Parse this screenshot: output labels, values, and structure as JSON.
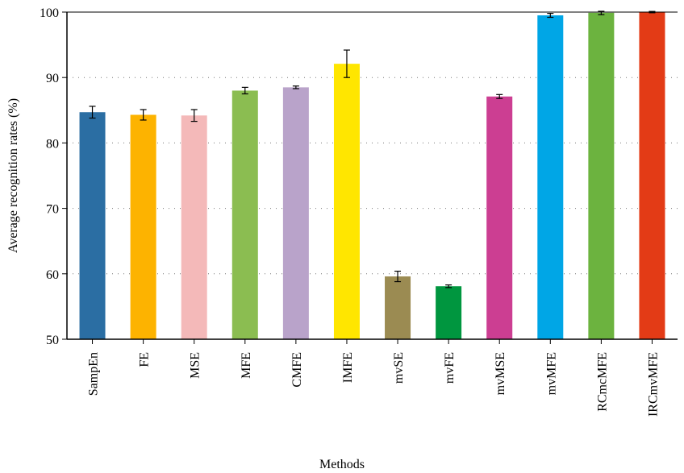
{
  "chart_data": {
    "type": "bar",
    "title": "",
    "xlabel": "Methods",
    "ylabel": "Average recognition rates (%)",
    "ylim": [
      50,
      100
    ],
    "yticks": [
      50,
      60,
      70,
      80,
      90,
      100
    ],
    "grid": "horizontal dotted",
    "categories": [
      "SampEn",
      "FE",
      "MSE",
      "MFE",
      "CMFE",
      "IMFE",
      "mvSE",
      "mvFE",
      "mvMSE",
      "mvMFE",
      "RCmcMFE",
      "IRCmvMFE"
    ],
    "values": [
      84.7,
      84.3,
      84.2,
      88.0,
      88.5,
      92.1,
      59.6,
      58.1,
      87.1,
      99.5,
      99.9,
      100.0
    ],
    "errors": [
      0.9,
      0.8,
      0.9,
      0.5,
      0.2,
      2.1,
      0.8,
      0.2,
      0.3,
      0.3,
      0.3,
      0.1
    ],
    "colors": [
      "#2b6ea3",
      "#fdb300",
      "#f4b9b9",
      "#8bbd51",
      "#b9a3ca",
      "#ffe600",
      "#9b8b52",
      "#00963f",
      "#cc3e92",
      "#00a6e6",
      "#6cb33f",
      "#e33b16"
    ]
  }
}
